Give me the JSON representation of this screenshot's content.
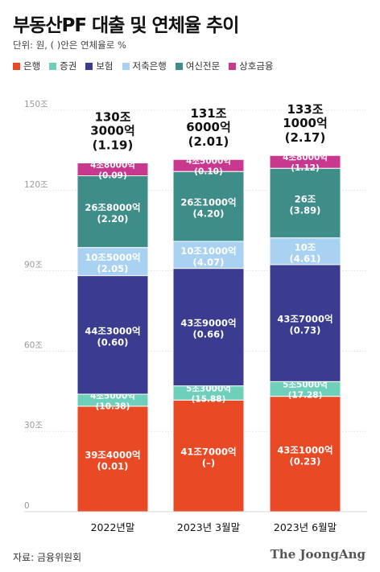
{
  "title": "부동산PF 대출 및 연체율 추이",
  "unit_note": "단위: 원, ( )안은 연체율로 %",
  "source": "자료: 금융위원회",
  "brand": "The JoongAng",
  "colors": {
    "은행": "#e84a26",
    "증권": "#6ed0ba",
    "보험": "#3a3c8f",
    "저축은행": "#a9d2f2",
    "여신전문": "#3f8d89",
    "상호금융": "#c8388f",
    "axis_text": "#999999",
    "grid": "#cccccc"
  },
  "chart_data": {
    "type": "bar",
    "stacked": true,
    "title": "부동산PF 대출 및 연체율 추이",
    "ylim": [
      0,
      150
    ],
    "yticks": [
      0,
      30,
      60,
      90,
      120,
      150
    ],
    "ytick_labels": [
      "0",
      "30조",
      "60조",
      "90조",
      "120조",
      "150조"
    ],
    "categories": [
      "2022년말",
      "2023년 3월말",
      "2023년 6월말"
    ],
    "totals": [
      {
        "amount": [
          "130조",
          "3000억"
        ],
        "rate": "(1.19)"
      },
      {
        "amount": [
          "131조",
          "6000억"
        ],
        "rate": "(2.01)"
      },
      {
        "amount": [
          "133조",
          "1000억"
        ],
        "rate": "(2.17)"
      }
    ],
    "series": [
      {
        "name": "은행",
        "values": [
          39.4,
          41.7,
          43.1
        ],
        "labels": [
          "39조4000억",
          "41조7000억",
          "43조1000억"
        ],
        "rates": [
          "(0.01)",
          "(–)",
          "(0.23)"
        ]
      },
      {
        "name": "증권",
        "values": [
          4.5,
          5.3,
          5.5
        ],
        "labels": [
          "4조5000억",
          "5조3000억",
          "5조5000억"
        ],
        "rates": [
          "(10.38)",
          "(15.88)",
          "(17.28)"
        ]
      },
      {
        "name": "보험",
        "values": [
          44.3,
          43.9,
          43.7
        ],
        "labels": [
          "44조3000억",
          "43조9000억",
          "43조7000억"
        ],
        "rates": [
          "(0.60)",
          "(0.66)",
          "(0.73)"
        ]
      },
      {
        "name": "저축은행",
        "values": [
          10.5,
          10.1,
          10.0
        ],
        "labels": [
          "10조5000억",
          "10조1000억",
          "10조"
        ],
        "rates": [
          "(2.05)",
          "(4.07)",
          "(4.61)"
        ]
      },
      {
        "name": "여신전문",
        "values": [
          26.8,
          26.1,
          26.0
        ],
        "labels": [
          "26조8000억",
          "26조1000억",
          "26조"
        ],
        "rates": [
          "(2.20)",
          "(4.20)",
          "(3.89)"
        ]
      },
      {
        "name": "상호금융",
        "values": [
          4.8,
          4.5,
          4.8
        ],
        "labels": [
          "4조8000억",
          "4조5000억",
          "4조8000억"
        ],
        "rates": [
          "(0.09)",
          "(0.10)",
          "(1.12)"
        ]
      }
    ]
  }
}
